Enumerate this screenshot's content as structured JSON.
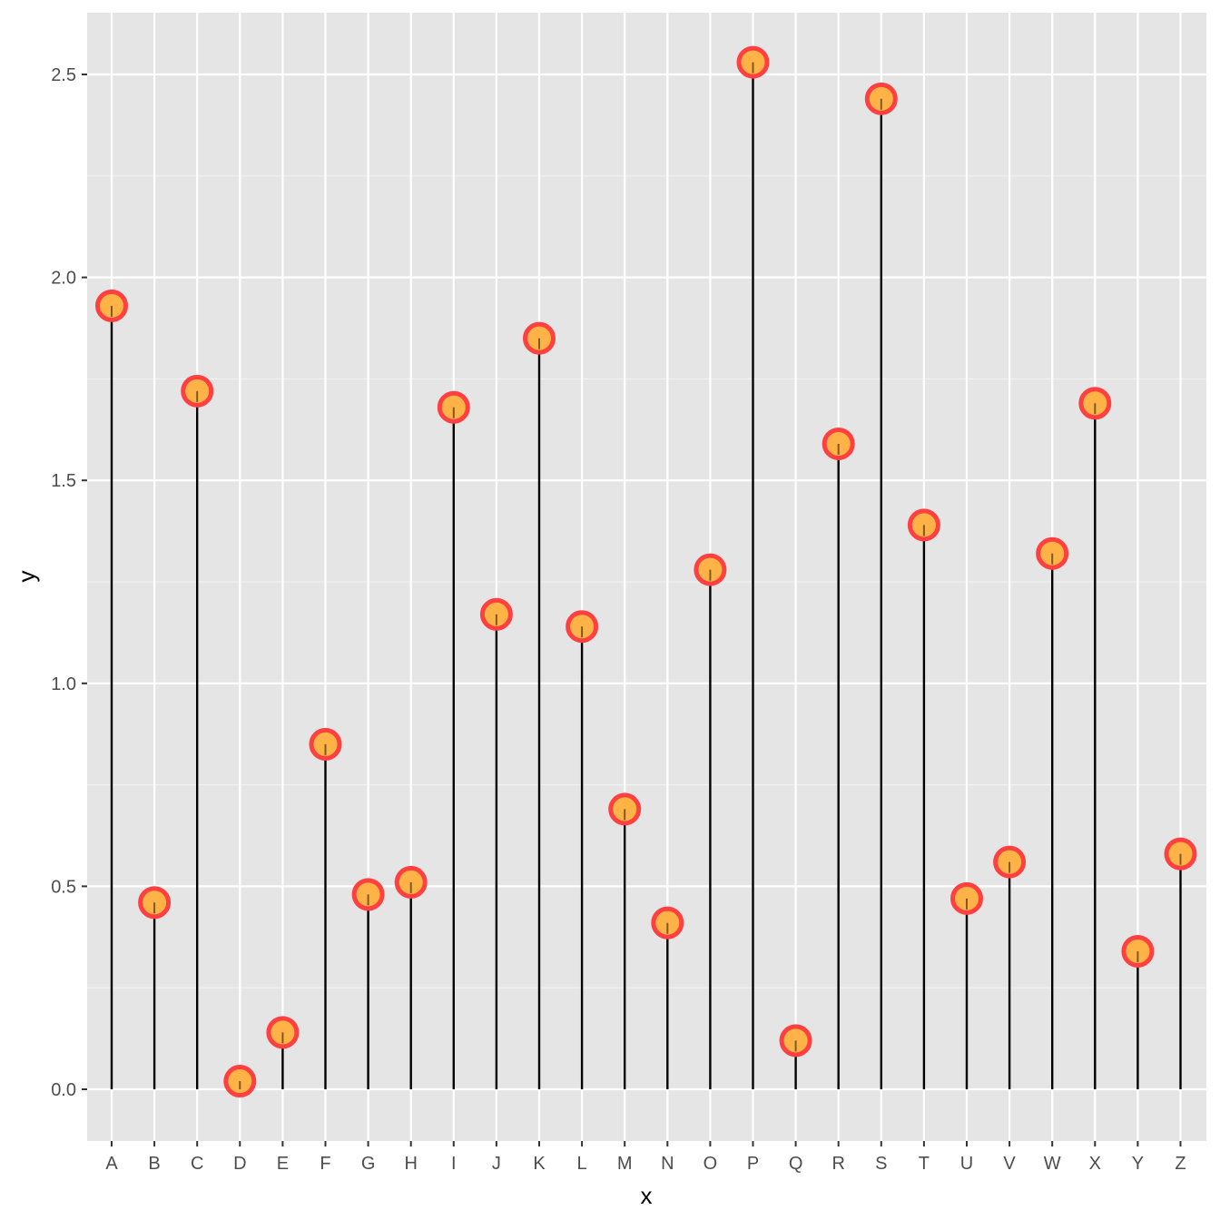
{
  "chart_data": {
    "type": "lollipop",
    "title": "",
    "xlabel": "x",
    "ylabel": "y",
    "ylim": [
      -0.12,
      2.65
    ],
    "yticks": [
      0.0,
      0.5,
      1.0,
      1.5,
      2.0,
      2.5
    ],
    "ytick_labels": [
      "0.0",
      "0.5",
      "1.0",
      "1.5",
      "2.0",
      "2.5"
    ],
    "categories": [
      "A",
      "B",
      "C",
      "D",
      "E",
      "F",
      "G",
      "H",
      "I",
      "J",
      "K",
      "L",
      "M",
      "N",
      "O",
      "P",
      "Q",
      "R",
      "S",
      "T",
      "U",
      "V",
      "W",
      "X",
      "Y",
      "Z"
    ],
    "values": [
      1.93,
      0.46,
      1.72,
      0.02,
      0.14,
      0.85,
      0.48,
      0.51,
      1.68,
      1.17,
      1.85,
      1.14,
      0.69,
      0.41,
      1.28,
      2.53,
      0.12,
      1.59,
      2.44,
      1.39,
      0.47,
      0.56,
      1.32,
      1.69,
      0.34,
      0.58
    ],
    "grid": true,
    "colors": {
      "panel_background": "#e5e5e5",
      "grid_major": "#ffffff",
      "grid_minor": "#f2f2f2",
      "stem": "#000000",
      "point_fill": "#ffb347",
      "point_stroke": "#ff4040"
    }
  }
}
